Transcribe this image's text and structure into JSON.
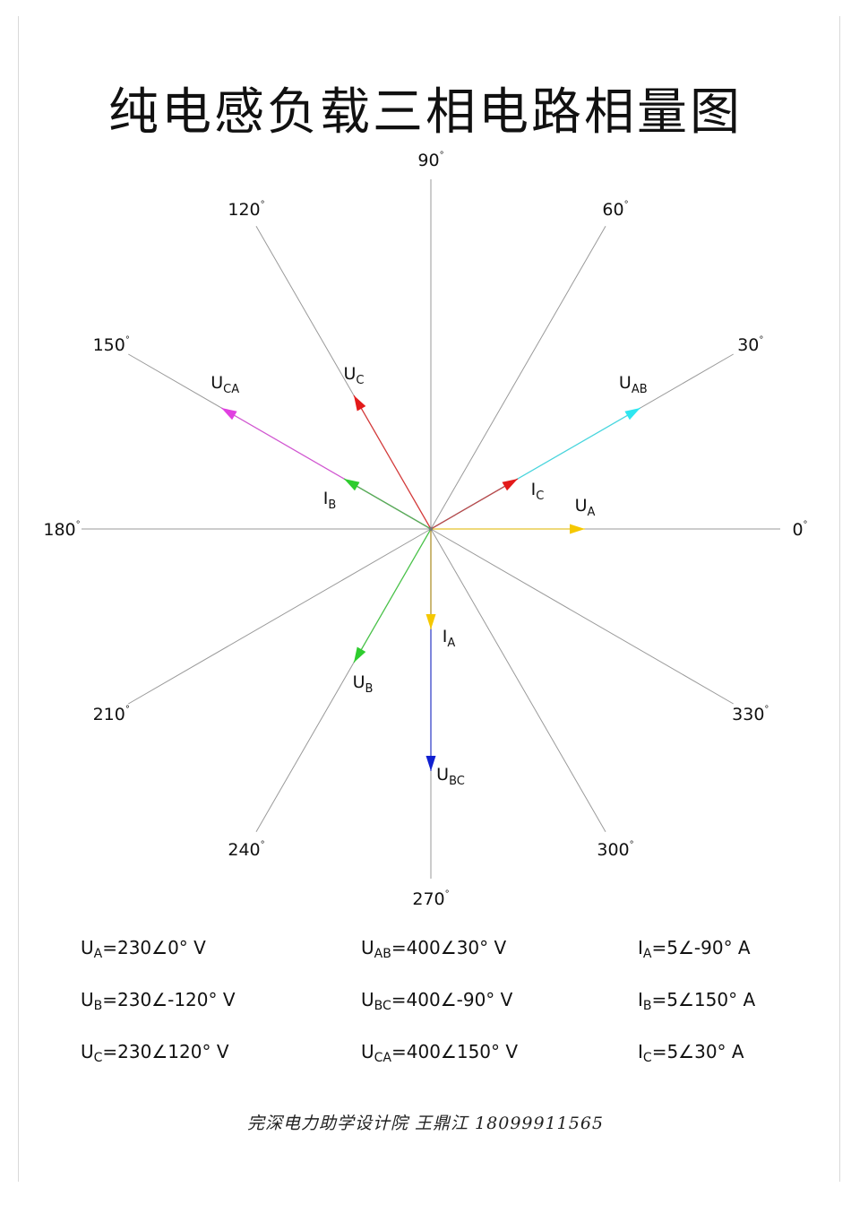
{
  "title": "纯电感负载三相电路相量图",
  "angles": [
    0,
    30,
    60,
    90,
    120,
    150,
    180,
    210,
    240,
    270,
    300,
    330
  ],
  "degree_mark": "°",
  "phasors": [
    {
      "main": "U",
      "sub": "A",
      "angle": 0,
      "magnitude": 230,
      "color": "#f5c800"
    },
    {
      "main": "U",
      "sub": "AB",
      "angle": 30,
      "magnitude": 400,
      "color": "#2ee6f0"
    },
    {
      "main": "U",
      "sub": "C",
      "angle": 120,
      "magnitude": 230,
      "color": "#e31a1a"
    },
    {
      "main": "U",
      "sub": "CA",
      "angle": 150,
      "magnitude": 400,
      "color": "#e040e0"
    },
    {
      "main": "U",
      "sub": "B",
      "angle": 240,
      "magnitude": 230,
      "color": "#2ecc2e"
    },
    {
      "main": "U",
      "sub": "BC",
      "angle": 270,
      "magnitude": 400,
      "color": "#1020d0"
    },
    {
      "main": "I",
      "sub": "A",
      "angle": 270,
      "magnitude": 5,
      "color": "#f5c800"
    },
    {
      "main": "I",
      "sub": "B",
      "angle": 150,
      "magnitude": 5,
      "color": "#2ecc2e"
    },
    {
      "main": "I",
      "sub": "C",
      "angle": 30,
      "magnitude": 5,
      "color": "#e31a1a"
    }
  ],
  "equations": [
    {
      "main": "U",
      "sub": "A",
      "rest": "=230∠0° V"
    },
    {
      "main": "U",
      "sub": "AB",
      "rest": "=400∠30° V"
    },
    {
      "main": "I",
      "sub": "A",
      "rest": "=5∠-90° A"
    },
    {
      "main": "U",
      "sub": "B",
      "rest": "=230∠-120° V"
    },
    {
      "main": "U",
      "sub": "BC",
      "rest": "=400∠-90° V"
    },
    {
      "main": "I",
      "sub": "B",
      "rest": "=5∠150° A"
    },
    {
      "main": "U",
      "sub": "C",
      "rest": "=230∠120° V"
    },
    {
      "main": "U",
      "sub": "CA",
      "rest": "=400∠150° V"
    },
    {
      "main": "I",
      "sub": "C",
      "rest": "=5∠30° A"
    }
  ],
  "signature": "完深电力助学设计院 王鼎江 18099911565"
}
